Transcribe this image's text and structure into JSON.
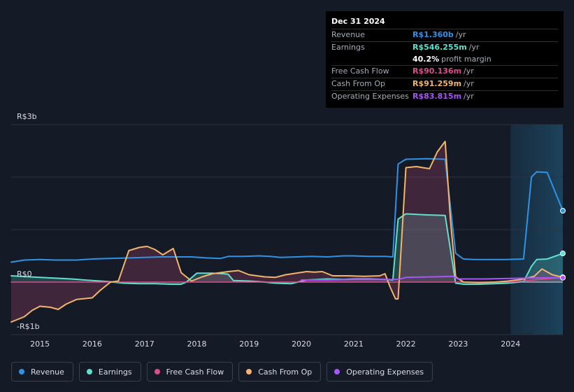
{
  "tooltip": {
    "date": "Dec 31 2024",
    "rows": [
      {
        "label": "Revenue",
        "value": "R$1.360b",
        "unit": "/yr",
        "color": "#2e93e6"
      },
      {
        "label": "Earnings",
        "value": "R$546.255m",
        "unit": "/yr",
        "color": "#5ee0cc"
      },
      {
        "label": "",
        "value": "40.2%",
        "unit": "profit margin",
        "color": "#ffffff"
      },
      {
        "label": "Free Cash Flow",
        "value": "R$90.136m",
        "unit": "/yr",
        "color": "#d94f8a"
      },
      {
        "label": "Cash From Op",
        "value": "R$91.259m",
        "unit": "/yr",
        "color": "#f2b56b"
      },
      {
        "label": "Operating Expenses",
        "value": "R$83.815m",
        "unit": "/yr",
        "color": "#a855f7"
      }
    ]
  },
  "legend": [
    {
      "label": "Revenue",
      "color": "#2e93e6"
    },
    {
      "label": "Earnings",
      "color": "#5ee0cc"
    },
    {
      "label": "Free Cash Flow",
      "color": "#d94f8a"
    },
    {
      "label": "Cash From Op",
      "color": "#f2b56b"
    },
    {
      "label": "Operating Expenses",
      "color": "#a855f7"
    }
  ],
  "chart_data": {
    "type": "area",
    "ylim": [
      -1000,
      3000
    ],
    "y_tick_labels": [
      {
        "value": 3000,
        "label": "R$3b"
      },
      {
        "value": 0,
        "label": "R$0"
      },
      {
        "value": -1000,
        "label": "-R$1b"
      }
    ],
    "x_ticks": [
      "2015",
      "2016",
      "2017",
      "2018",
      "2019",
      "2020",
      "2021",
      "2022",
      "2023",
      "2024"
    ],
    "xlim": [
      2014.45,
      2025.0
    ],
    "grid": true,
    "legend_position": "bottom",
    "forecast_shading_from": 2024.0,
    "series": [
      {
        "name": "Revenue",
        "color": "#2e93e6",
        "x": [
          2014.45,
          2014.7,
          2015.0,
          2015.3,
          2015.7,
          2016.0,
          2016.3,
          2016.7,
          2017.0,
          2017.3,
          2017.6,
          2017.9,
          2018.2,
          2018.45,
          2018.6,
          2018.9,
          2019.2,
          2019.4,
          2019.6,
          2019.9,
          2020.2,
          2020.5,
          2020.8,
          2021.0,
          2021.3,
          2021.6,
          2021.75,
          2021.85,
          2022.0,
          2022.4,
          2022.75,
          2022.95,
          2023.1,
          2023.3,
          2023.6,
          2023.9,
          2024.25,
          2024.4,
          2024.5,
          2024.7,
          2025.0
        ],
        "values": [
          380,
          420,
          430,
          420,
          420,
          440,
          450,
          460,
          470,
          480,
          480,
          480,
          460,
          450,
          490,
          490,
          500,
          490,
          470,
          480,
          490,
          480,
          500,
          500,
          490,
          490,
          480,
          2250,
          2340,
          2350,
          2340,
          550,
          440,
          430,
          430,
          430,
          440,
          2000,
          2100,
          2090,
          1360
        ]
      },
      {
        "name": "Earnings",
        "color": "#5ee0cc",
        "x": [
          2014.45,
          2014.8,
          2015.2,
          2015.6,
          2016.0,
          2016.3,
          2016.6,
          2016.9,
          2017.2,
          2017.5,
          2017.7,
          2017.8,
          2018.0,
          2018.3,
          2018.5,
          2018.6,
          2018.7,
          2019.0,
          2019.3,
          2019.5,
          2019.8,
          2020.1,
          2020.5,
          2020.8,
          2021.0,
          2021.3,
          2021.6,
          2021.75,
          2021.85,
          2022.0,
          2022.4,
          2022.75,
          2022.95,
          2023.1,
          2023.4,
          2023.7,
          2023.95,
          2024.25,
          2024.4,
          2024.5,
          2024.7,
          2025.0
        ],
        "values": [
          120,
          100,
          80,
          60,
          30,
          10,
          -20,
          -30,
          -30,
          -40,
          -40,
          0,
          170,
          170,
          160,
          150,
          30,
          20,
          0,
          -20,
          -30,
          40,
          60,
          50,
          60,
          60,
          50,
          40,
          1200,
          1300,
          1280,
          1270,
          -20,
          -40,
          -40,
          -30,
          -20,
          10,
          300,
          430,
          440,
          546
        ]
      },
      {
        "name": "Free Cash Flow",
        "color": "#d94f8a",
        "x": [
          2014.45,
          2015.0,
          2016.0,
          2017.0,
          2018.0,
          2019.0,
          2020.0,
          2021.0,
          2022.0,
          2023.0,
          2024.0,
          2025.0
        ],
        "values": [
          0,
          0,
          0,
          0,
          0,
          0,
          0,
          0,
          0,
          0,
          0,
          90
        ]
      },
      {
        "name": "Cash From Op",
        "color": "#f2b56b",
        "x": [
          2014.45,
          2014.7,
          2014.85,
          2015.0,
          2015.2,
          2015.35,
          2015.5,
          2015.7,
          2016.0,
          2016.15,
          2016.35,
          2016.5,
          2016.7,
          2016.9,
          2017.05,
          2017.2,
          2017.35,
          2017.55,
          2017.7,
          2017.9,
          2018.1,
          2018.3,
          2018.6,
          2018.8,
          2019.0,
          2019.3,
          2019.5,
          2019.7,
          2019.9,
          2020.1,
          2020.25,
          2020.4,
          2020.6,
          2020.9,
          2021.2,
          2021.5,
          2021.6,
          2021.7,
          2021.8,
          2021.85,
          2022.0,
          2022.2,
          2022.45,
          2022.6,
          2022.75,
          2022.85,
          2022.95,
          2023.1,
          2023.4,
          2023.7,
          2023.95,
          2024.2,
          2024.45,
          2024.6,
          2024.8,
          2025.0
        ],
        "values": [
          -760,
          -660,
          -540,
          -460,
          -480,
          -520,
          -420,
          -330,
          -300,
          -160,
          0,
          20,
          600,
          660,
          680,
          620,
          520,
          640,
          180,
          20,
          100,
          160,
          200,
          220,
          140,
          100,
          90,
          140,
          170,
          200,
          190,
          200,
          120,
          120,
          110,
          120,
          160,
          -100,
          -320,
          -320,
          2180,
          2200,
          2160,
          2480,
          2680,
          1200,
          100,
          0,
          -10,
          0,
          20,
          50,
          110,
          250,
          140,
          91
        ]
      },
      {
        "name": "Operating Expenses",
        "color": "#a855f7",
        "x": [
          2020.0,
          2020.5,
          2021.0,
          2021.5,
          2021.85,
          2022.0,
          2022.5,
          2022.9,
          2023.0,
          2023.5,
          2024.0,
          2024.5,
          2025.0
        ],
        "values": [
          40,
          40,
          50,
          50,
          50,
          90,
          100,
          110,
          60,
          60,
          70,
          80,
          84
        ]
      }
    ]
  }
}
